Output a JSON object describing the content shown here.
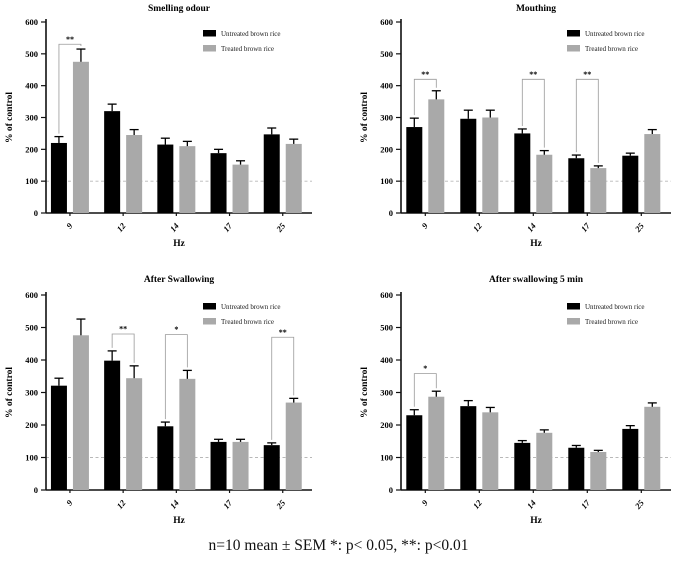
{
  "caption": "n=10 mean ± SEM *: p< 0.05, **: p<0.01",
  "colors": {
    "untreated": "#000000",
    "treated": "#a9a9a9",
    "reference_line": "#b8b8b8"
  },
  "chart_data": [
    {
      "type": "bar",
      "title": "Smelling odour",
      "xlabel": "Hz",
      "ylabel": "% of control",
      "ylim": [
        0,
        600
      ],
      "yticks": [
        0,
        100,
        200,
        300,
        400,
        500,
        600
      ],
      "categories": [
        "9",
        "12",
        "14",
        "17",
        "25"
      ],
      "series": [
        {
          "name": "Untreated brown rice",
          "color": "#000000",
          "values": [
            220,
            320,
            215,
            188,
            247
          ],
          "errors": [
            20,
            22,
            20,
            12,
            20
          ]
        },
        {
          "name": "Treated brown rice",
          "color": "#a9a9a9",
          "values": [
            475,
            245,
            210,
            152,
            217
          ],
          "errors": [
            40,
            17,
            15,
            12,
            15
          ]
        }
      ],
      "reference_line": 100,
      "grid": false,
      "legend_position": "top-right-inside",
      "significance": [
        {
          "category": "9",
          "label": "**",
          "bracket_top": 530
        }
      ]
    },
    {
      "type": "bar",
      "title": "Mouthing",
      "xlabel": "Hz",
      "ylabel": "% of control",
      "ylim": [
        0,
        600
      ],
      "yticks": [
        0,
        100,
        200,
        300,
        400,
        500,
        600
      ],
      "categories": [
        "9",
        "12",
        "14",
        "17",
        "25"
      ],
      "series": [
        {
          "name": "Untreated brown rice",
          "color": "#000000",
          "values": [
            270,
            296,
            250,
            172,
            180
          ],
          "errors": [
            28,
            27,
            14,
            10,
            8
          ]
        },
        {
          "name": "Treated brown rice",
          "color": "#a9a9a9",
          "values": [
            357,
            300,
            183,
            141,
            248
          ],
          "errors": [
            27,
            23,
            13,
            7,
            14
          ]
        }
      ],
      "reference_line": 100,
      "grid": false,
      "legend_position": "top-right-inside",
      "significance": [
        {
          "category": "9",
          "label": "**",
          "bracket_top": 420
        },
        {
          "category": "14",
          "label": "**",
          "bracket_top": 420
        },
        {
          "category": "17",
          "label": "**",
          "bracket_top": 420
        }
      ]
    },
    {
      "type": "bar",
      "title": "After Swallowing",
      "xlabel": "Hz",
      "ylabel": "% of control",
      "ylim": [
        0,
        600
      ],
      "yticks": [
        0,
        100,
        200,
        300,
        400,
        500,
        600
      ],
      "categories": [
        "9",
        "12",
        "14",
        "17",
        "25"
      ],
      "series": [
        {
          "name": "Untreated brown rice",
          "color": "#000000",
          "values": [
            321,
            398,
            196,
            148,
            138
          ],
          "errors": [
            23,
            30,
            13,
            8,
            7
          ]
        },
        {
          "name": "Treated brown rice",
          "color": "#a9a9a9",
          "values": [
            476,
            344,
            342,
            148,
            269
          ],
          "errors": [
            50,
            38,
            26,
            8,
            13
          ]
        }
      ],
      "reference_line": 100,
      "grid": false,
      "legend_position": "top-right-inside",
      "significance": [
        {
          "category": "12",
          "label": "**",
          "bracket_top": 480
        },
        {
          "category": "14",
          "label": "*",
          "bracket_top": 478
        },
        {
          "category": "25",
          "label": "**",
          "bracket_top": 470
        }
      ]
    },
    {
      "type": "bar",
      "title": "After swallowing 5 min",
      "xlabel": "Hz",
      "ylabel": "% of control",
      "ylim": [
        0,
        600
      ],
      "yticks": [
        0,
        100,
        200,
        300,
        400,
        500,
        600
      ],
      "categories": [
        "9",
        "12",
        "14",
        "17",
        "25"
      ],
      "series": [
        {
          "name": "Untreated brown rice",
          "color": "#000000",
          "values": [
            230,
            258,
            145,
            130,
            188
          ],
          "errors": [
            17,
            17,
            7,
            7,
            10
          ]
        },
        {
          "name": "Treated brown rice",
          "color": "#a9a9a9",
          "values": [
            287,
            239,
            176,
            117,
            256
          ],
          "errors": [
            17,
            15,
            9,
            5,
            12
          ]
        }
      ],
      "reference_line": 100,
      "grid": false,
      "legend_position": "top-right-inside",
      "significance": [
        {
          "category": "9",
          "label": "*",
          "bracket_top": 358
        }
      ]
    }
  ]
}
